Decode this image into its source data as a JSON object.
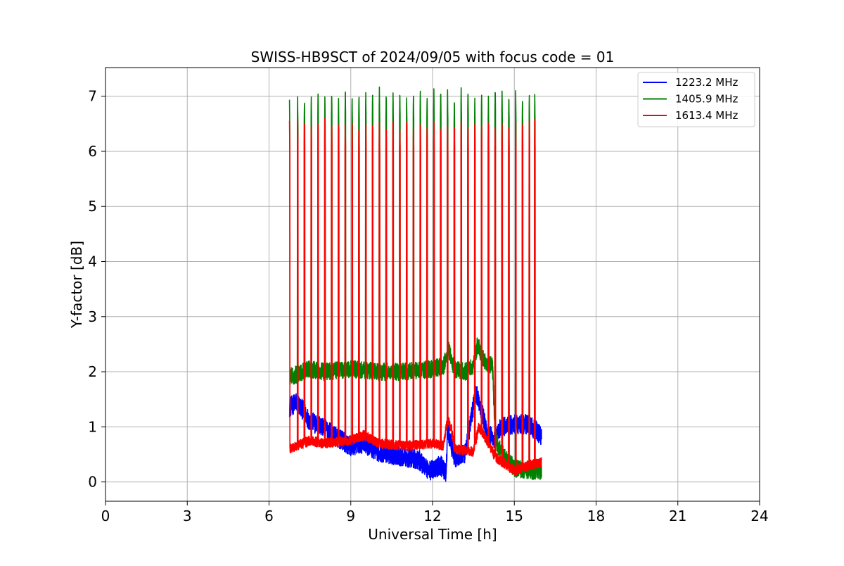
{
  "chart_data": {
    "type": "line",
    "title": "SWISS-HB9SCT of 2024/09/05 with focus code = 01",
    "xlabel": "Universal Time [h]",
    "ylabel": "Y-factor [dB]",
    "xlim": [
      0,
      24
    ],
    "ylim": [
      -0.35,
      7.52
    ],
    "xticks": [
      0,
      3,
      6,
      9,
      12,
      15,
      18,
      21,
      24
    ],
    "yticks": [
      0,
      1,
      2,
      3,
      4,
      5,
      6,
      7
    ],
    "grid": true,
    "legend_position": "top-right",
    "time_range": [
      6.75,
      16.0
    ],
    "pulses": {
      "times": [
        6.75,
        7.05,
        7.3,
        7.55,
        7.8,
        8.05,
        8.3,
        8.55,
        8.8,
        9.05,
        9.3,
        9.55,
        9.8,
        10.05,
        10.3,
        10.55,
        10.8,
        11.05,
        11.3,
        11.55,
        11.8,
        12.05,
        12.3,
        12.55,
        12.8,
        13.05,
        13.3,
        13.55,
        13.8,
        14.05,
        14.3,
        14.55,
        14.8,
        15.05,
        15.3,
        15.55,
        15.75
      ],
      "peak_values": {
        "1405.9 MHz": [
          6.95,
          6.97,
          6.95,
          6.99,
          7.12,
          6.98,
          7.06,
          6.98,
          7.14,
          6.98,
          7.06,
          7.08,
          7.12,
          7.16,
          7.05,
          7.09,
          7.08,
          6.98,
          7.09,
          7.12,
          7.03,
          7.11,
          7.1,
          7.1,
          6.95,
          7.15,
          7.13,
          6.98,
          7.12,
          7.0,
          7.14,
          7.1,
          7.03,
          7.1,
          6.97,
          7.04,
          7.05
        ],
        "1613.4 MHz": [
          6.55,
          6.6,
          6.55,
          6.5,
          6.55,
          6.58,
          6.55,
          6.5,
          6.55,
          6.5,
          6.5,
          6.5,
          6.55,
          6.52,
          6.5,
          6.5,
          6.48,
          6.5,
          6.5,
          6.5,
          6.5,
          6.52,
          6.5,
          6.48,
          6.5,
          6.52,
          6.5,
          6.5,
          6.55,
          6.5,
          6.5,
          6.5,
          6.52,
          6.5,
          6.55,
          6.55,
          6.58
        ]
      }
    },
    "series": [
      {
        "name": "1223.2 MHz",
        "color": "#0000ff",
        "baseline": {
          "x": [
            6.75,
            7.0,
            7.25,
            7.5,
            8.0,
            8.5,
            9.0,
            9.5,
            10.0,
            10.5,
            11.0,
            11.5,
            11.9,
            12.3,
            12.5,
            12.55,
            12.8,
            13.2,
            13.5,
            13.6,
            13.75,
            14.0,
            14.3,
            14.5,
            15.0,
            15.5,
            16.0
          ],
          "y": [
            1.35,
            1.45,
            1.3,
            1.1,
            1.0,
            0.8,
            0.65,
            0.7,
            0.55,
            0.5,
            0.45,
            0.4,
            0.2,
            0.3,
            0.15,
            0.95,
            0.45,
            0.5,
            1.4,
            1.6,
            1.4,
            0.9,
            0.75,
            1.0,
            1.05,
            1.05,
            0.85
          ]
        },
        "noise": 0.18
      },
      {
        "name": "1405.9 MHz",
        "color": "#008000",
        "baseline": {
          "x": [
            6.75,
            7.5,
            8.0,
            9.0,
            10.0,
            11.0,
            12.0,
            12.4,
            12.6,
            12.8,
            13.2,
            13.5,
            13.65,
            13.9,
            14.2,
            14.3,
            14.5,
            15.0,
            15.5,
            16.0
          ],
          "y": [
            1.9,
            2.05,
            2.0,
            2.05,
            2.0,
            2.0,
            2.05,
            2.1,
            2.4,
            2.05,
            2.0,
            2.1,
            2.5,
            2.2,
            2.1,
            0.8,
            0.55,
            0.25,
            0.2,
            0.2
          ]
        },
        "noise": 0.16
      },
      {
        "name": "1613.4 MHz",
        "color": "#ff0000",
        "baseline": {
          "x": [
            6.75,
            7.5,
            8.0,
            9.0,
            9.5,
            10.0,
            11.0,
            12.0,
            12.4,
            12.55,
            12.7,
            12.8,
            13.5,
            13.7,
            14.0,
            14.3,
            14.6,
            15.0,
            15.5,
            16.0
          ],
          "y": [
            0.6,
            0.75,
            0.7,
            0.75,
            0.85,
            0.7,
            0.65,
            0.7,
            0.65,
            1.15,
            0.95,
            0.6,
            0.55,
            1.0,
            0.75,
            0.45,
            0.35,
            0.2,
            0.3,
            0.35
          ]
        },
        "noise": 0.09
      }
    ]
  }
}
